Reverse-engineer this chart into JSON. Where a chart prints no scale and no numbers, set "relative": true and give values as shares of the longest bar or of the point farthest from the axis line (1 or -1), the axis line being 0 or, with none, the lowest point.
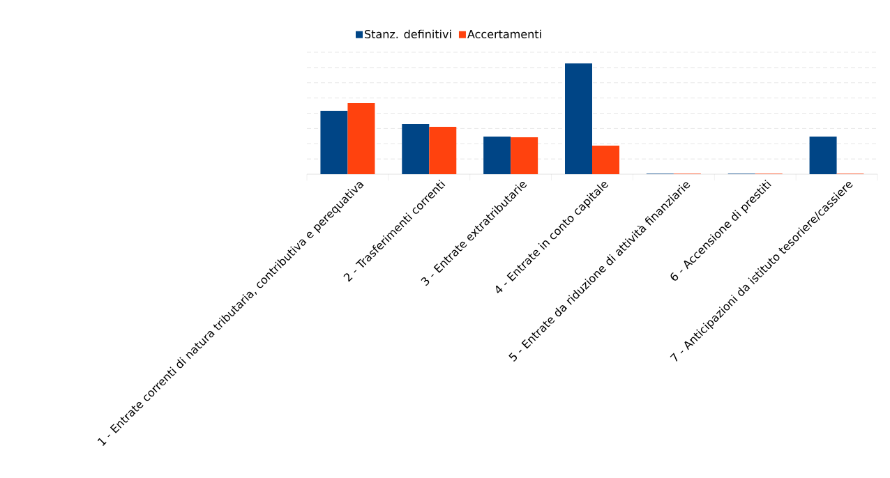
{
  "chart_data": {
    "type": "bar",
    "relative": true,
    "grid": "y",
    "legend": "top",
    "categories": [
      "1 - Entrate correnti di natura tributaria, contributiva e perequativa",
      "2 - Trasferimenti correnti",
      "3 - Entrate extratributarie",
      "4 - Entrate in conto capitale",
      "5 - Entrate da riduzione di attività finanziarie",
      "6 - Accensione di prestiti",
      "7 - Anticipazioni da istituto tesoriere/cassiere"
    ],
    "series": [
      {
        "name": "Stanz. definitivi",
        "color": "#004586",
        "values": [
          0.572,
          0.453,
          0.34,
          1,
          0.005,
          0.005,
          0.34
        ]
      },
      {
        "name": "Accertamenti",
        "color": "#ff420e",
        "values": [
          0.642,
          0.428,
          0.333,
          0.258,
          0.005,
          0.005,
          0.005
        ]
      }
    ]
  }
}
